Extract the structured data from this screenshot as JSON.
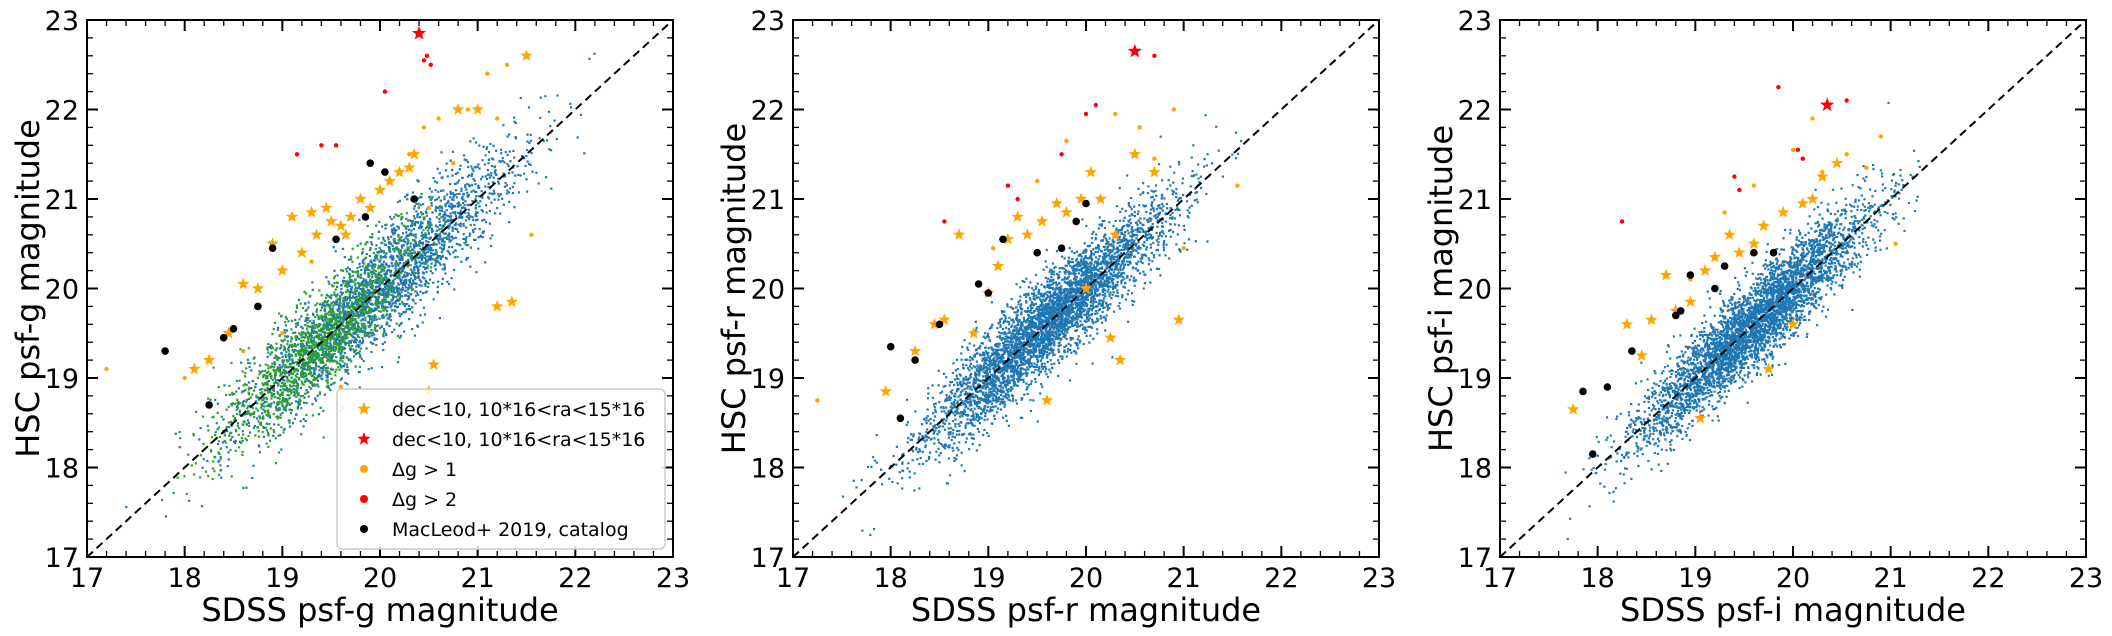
{
  "colors": {
    "blue": "#1f77b4",
    "green": "#2ca02c",
    "orange": "#ffa500",
    "red": "#ff0000",
    "black": "#000000"
  },
  "chart_data": [
    {
      "type": "scatter",
      "xlabel": "SDSS psf-g magnitude",
      "ylabel": "HSC psf-g magnitude",
      "xlim": [
        17,
        23
      ],
      "ylim": [
        17,
        23
      ],
      "xticks": [
        "17",
        "18",
        "19",
        "20",
        "21",
        "22",
        "23"
      ],
      "yticks": [
        "17",
        "18",
        "19",
        "20",
        "21",
        "22",
        "23"
      ],
      "reference_line": "y = x (dashed)",
      "legend_position": "lower right",
      "legend": [
        {
          "label": "dec<10, 10*16<ra<15*16",
          "marker": "star",
          "color": "#ffa500"
        },
        {
          "label": "dec<10, 10*16<ra<15*16",
          "marker": "star",
          "color": "#ff0000"
        },
        {
          "label": "Δg > 1",
          "marker": "circle",
          "color": "#ffa500"
        },
        {
          "label": "Δg > 2",
          "marker": "circle",
          "color": "#ff0000"
        },
        {
          "label": "MacLeod+ 2019, catalog",
          "marker": "circle",
          "color": "#000000"
        }
      ],
      "background_cloud": [
        {
          "color": "#1f77b4",
          "count": 2600,
          "x_center": 20.0,
          "spread": 0.7,
          "offset_sd": 0.3,
          "x_range": [
            17.3,
            23.0
          ]
        },
        {
          "color": "#2ca02c",
          "count": 1400,
          "x_center": 19.4,
          "spread": 0.55,
          "offset_sd": 0.28,
          "x_range": [
            17.4,
            22.6
          ]
        }
      ],
      "series": [
        {
          "name": "dec<10, 10*16<ra<15*16",
          "marker": "star",
          "color": "#ffa500",
          "x": [
            18.1,
            18.25,
            18.45,
            18.6,
            18.75,
            18.9,
            19.0,
            19.1,
            19.2,
            19.3,
            19.35,
            19.45,
            19.5,
            19.6,
            19.65,
            19.7,
            19.8,
            19.9,
            20.0,
            20.1,
            20.2,
            20.3,
            20.35,
            20.55,
            20.8,
            21.0,
            21.2,
            21.5,
            20.5,
            21.35
          ],
          "y": [
            19.1,
            19.2,
            19.5,
            20.05,
            20.0,
            20.5,
            20.2,
            20.8,
            20.4,
            20.85,
            20.6,
            20.9,
            20.75,
            20.7,
            20.6,
            20.8,
            21.0,
            20.9,
            21.1,
            21.2,
            21.3,
            21.35,
            21.5,
            19.15,
            22.0,
            22.0,
            19.8,
            22.6,
            18.85,
            19.85
          ]
        },
        {
          "name": "dec<10, 10*16<ra<15*16",
          "marker": "star",
          "color": "#ff0000",
          "x": [
            20.4
          ],
          "y": [
            22.85
          ]
        },
        {
          "name": "Δg > 1",
          "marker": "circle",
          "color": "#ffa500",
          "x": [
            17.2,
            18.0,
            18.6,
            19.0,
            19.3,
            19.8,
            20.3,
            20.45,
            20.6,
            20.75,
            20.9,
            21.1,
            21.3,
            21.55,
            20.5,
            21.2,
            19.6
          ],
          "y": [
            19.1,
            19.0,
            19.3,
            19.5,
            20.3,
            21.0,
            21.5,
            21.8,
            21.9,
            21.4,
            22.0,
            22.4,
            22.5,
            20.6,
            20.9,
            21.9,
            18.9
          ]
        },
        {
          "name": "Δg > 2",
          "marker": "circle",
          "color": "#ff0000",
          "x": [
            19.15,
            19.4,
            19.55,
            20.05,
            20.45,
            20.48,
            20.52
          ],
          "y": [
            21.5,
            21.6,
            21.6,
            22.2,
            22.55,
            22.6,
            22.5
          ]
        },
        {
          "name": "MacLeod+ 2019, catalog",
          "marker": "circle",
          "color": "#000000",
          "x": [
            17.8,
            18.25,
            18.4,
            18.5,
            18.75,
            18.9,
            19.55,
            19.85,
            19.9,
            20.05,
            20.35
          ],
          "y": [
            19.3,
            18.7,
            19.45,
            19.55,
            19.8,
            20.45,
            20.55,
            20.8,
            21.4,
            21.3,
            21.0
          ]
        }
      ]
    },
    {
      "type": "scatter",
      "xlabel": "SDSS psf-r magnitude",
      "ylabel": "HSC psf-r magnitude",
      "xlim": [
        17,
        23
      ],
      "ylim": [
        17,
        23
      ],
      "xticks": [
        "17",
        "18",
        "19",
        "20",
        "21",
        "22",
        "23"
      ],
      "yticks": [
        "17",
        "18",
        "19",
        "20",
        "21",
        "22",
        "23"
      ],
      "reference_line": "y = x (dashed)",
      "background_cloud": [
        {
          "color": "#1f77b4",
          "count": 4200,
          "x_center": 19.6,
          "spread": 0.62,
          "offset_sd": 0.26,
          "x_range": [
            17.5,
            22.2
          ]
        }
      ],
      "series": [
        {
          "marker": "star",
          "color": "#ffa500",
          "x": [
            17.95,
            18.25,
            18.45,
            18.55,
            18.7,
            18.85,
            19.0,
            19.1,
            19.2,
            19.3,
            19.4,
            19.55,
            19.7,
            19.8,
            19.95,
            20.05,
            20.15,
            20.3,
            20.35,
            20.5,
            20.7,
            20.95,
            19.6,
            20.0,
            20.25
          ],
          "y": [
            18.85,
            19.3,
            19.6,
            19.65,
            20.6,
            19.5,
            19.95,
            20.25,
            20.55,
            20.8,
            20.6,
            20.75,
            20.95,
            20.85,
            21.0,
            21.3,
            21.0,
            20.6,
            19.2,
            21.5,
            21.3,
            19.65,
            18.75,
            20.0,
            19.45
          ]
        },
        {
          "marker": "star",
          "color": "#ff0000",
          "x": [
            20.5
          ],
          "y": [
            22.65
          ]
        },
        {
          "marker": "circle",
          "color": "#ffa500",
          "x": [
            17.25,
            19.05,
            19.5,
            19.8,
            20.3,
            20.55,
            20.7,
            20.9,
            21.0,
            21.55
          ],
          "y": [
            18.75,
            20.45,
            21.2,
            21.65,
            21.95,
            21.8,
            21.45,
            22.0,
            20.45,
            21.15
          ]
        },
        {
          "marker": "circle",
          "color": "#ff0000",
          "x": [
            18.55,
            19.2,
            19.3,
            19.75,
            20.0,
            20.1,
            20.7
          ],
          "y": [
            20.75,
            21.15,
            21.0,
            21.5,
            21.95,
            22.05,
            22.6
          ]
        },
        {
          "marker": "circle",
          "color": "#000000",
          "x": [
            18.0,
            18.1,
            18.25,
            18.5,
            18.9,
            19.0,
            19.15,
            19.5,
            19.75,
            19.9,
            20.0
          ],
          "y": [
            19.35,
            18.55,
            19.2,
            19.6,
            20.05,
            19.95,
            20.55,
            20.4,
            20.45,
            20.75,
            20.95
          ]
        }
      ]
    },
    {
      "type": "scatter",
      "xlabel": "SDSS psf-i magnitude",
      "ylabel": "HSC psf-i magnitude",
      "xlim": [
        17,
        23
      ],
      "ylim": [
        17,
        23
      ],
      "xticks": [
        "17",
        "18",
        "19",
        "20",
        "21",
        "22",
        "23"
      ],
      "yticks": [
        "17",
        "18",
        "19",
        "20",
        "21",
        "22",
        "23"
      ],
      "reference_line": "y = x (dashed)",
      "background_cloud": [
        {
          "color": "#1f77b4",
          "count": 4200,
          "x_center": 19.6,
          "spread": 0.58,
          "offset_sd": 0.25,
          "x_range": [
            17.4,
            21.3
          ]
        }
      ],
      "series": [
        {
          "marker": "star",
          "color": "#ffa500",
          "x": [
            17.75,
            18.3,
            18.55,
            18.7,
            18.8,
            18.95,
            19.1,
            19.2,
            19.35,
            19.45,
            19.6,
            19.7,
            19.9,
            20.1,
            20.2,
            20.3,
            20.45,
            19.05,
            19.75,
            20.0,
            18.45
          ],
          "y": [
            18.65,
            19.6,
            19.65,
            20.15,
            19.75,
            19.85,
            20.2,
            20.35,
            20.6,
            20.4,
            20.5,
            20.7,
            20.85,
            20.95,
            21.0,
            21.25,
            21.4,
            18.55,
            19.1,
            19.6,
            19.25
          ]
        },
        {
          "marker": "star",
          "color": "#ff0000",
          "x": [
            20.35
          ],
          "y": [
            22.05
          ]
        },
        {
          "marker": "circle",
          "color": "#ffa500",
          "x": [
            18.45,
            18.95,
            19.3,
            19.6,
            20.0,
            20.3,
            20.55,
            20.75,
            20.9,
            21.05,
            20.2
          ],
          "y": [
            19.25,
            20.1,
            20.85,
            21.15,
            21.55,
            21.3,
            21.5,
            21.35,
            21.7,
            20.5,
            21.9
          ]
        },
        {
          "marker": "circle",
          "color": "#ff0000",
          "x": [
            18.25,
            19.4,
            19.45,
            19.85,
            20.05,
            20.1,
            20.55
          ],
          "y": [
            20.75,
            21.25,
            21.1,
            22.25,
            21.55,
            21.45,
            22.1
          ]
        },
        {
          "marker": "circle",
          "color": "#000000",
          "x": [
            17.95,
            17.85,
            18.1,
            18.35,
            18.8,
            18.85,
            18.95,
            19.2,
            19.3,
            19.6,
            19.8
          ],
          "y": [
            18.15,
            18.85,
            18.9,
            19.3,
            19.7,
            19.75,
            20.15,
            20.0,
            20.25,
            20.4,
            20.4
          ]
        }
      ]
    }
  ]
}
